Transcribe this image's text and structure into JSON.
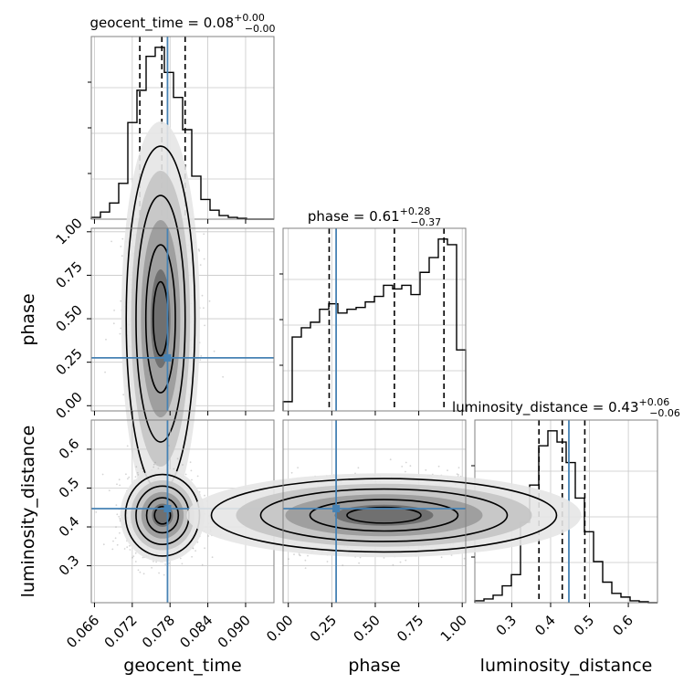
{
  "chart_data": {
    "type": "corner",
    "parameters": [
      {
        "name": "geocent_time",
        "xlabel": "geocent_time",
        "title": {
          "base": "geocent_time = 0.08",
          "plus": "+0.00",
          "minus": "−0.00"
        },
        "range": [
          0.0655,
          0.0945
        ],
        "ticks": [
          0.066,
          0.072,
          0.078,
          0.084,
          0.09
        ],
        "tick_labels": [
          "0.066",
          "0.072",
          "0.078",
          "0.084",
          "0.090"
        ],
        "quantiles": [
          0.0732,
          0.0767,
          0.0804
        ],
        "truth": 0.0776,
        "hist_edges": [
          0.0655,
          0.06695,
          0.0684,
          0.06985,
          0.0713,
          0.07275,
          0.0742,
          0.07565,
          0.0771,
          0.07855,
          0.08,
          0.08145,
          0.0829,
          0.08435,
          0.0858,
          0.08725,
          0.0887,
          0.09015,
          0.0916,
          0.09305,
          0.0945
        ],
        "hist_values": [
          0.01,
          0.04,
          0.09,
          0.2,
          0.54,
          0.72,
          0.91,
          0.96,
          0.82,
          0.68,
          0.5,
          0.24,
          0.11,
          0.05,
          0.02,
          0.01,
          0.005,
          0,
          0,
          0
        ]
      },
      {
        "name": "phase",
        "xlabel": "phase",
        "ylabel": "phase",
        "title": {
          "base": "phase = 0.61",
          "plus": "+0.28",
          "minus": "−0.37"
        },
        "range": [
          -0.03,
          1.02
        ],
        "ticks": [
          0.0,
          0.25,
          0.5,
          0.75,
          1.0
        ],
        "tick_labels": [
          "0.00",
          "0.25",
          "0.50",
          "0.75",
          "1.00"
        ],
        "quantiles": [
          0.235,
          0.61,
          0.895
        ],
        "truth": 0.275,
        "hist_edges": [
          -0.03,
          0.0225,
          0.075,
          0.1275,
          0.18,
          0.2325,
          0.285,
          0.3375,
          0.39,
          0.4425,
          0.495,
          0.5475,
          0.6,
          0.6525,
          0.705,
          0.7575,
          0.81,
          0.8625,
          0.915,
          0.9675,
          1.02
        ],
        "hist_values": [
          0.05,
          0.4,
          0.45,
          0.48,
          0.55,
          0.58,
          0.53,
          0.55,
          0.56,
          0.59,
          0.62,
          0.68,
          0.66,
          0.68,
          0.63,
          0.75,
          0.83,
          0.93,
          0.9,
          0.33
        ]
      },
      {
        "name": "luminosity_distance",
        "xlabel": "luminosity_distance",
        "ylabel": "luminosity_distance",
        "title": {
          "base": "luminosity_distance = 0.43",
          "plus": "+0.06",
          "minus": "−0.06"
        },
        "range": [
          0.205,
          0.675
        ],
        "ticks": [
          0.3,
          0.4,
          0.5,
          0.6
        ],
        "tick_labels": [
          "0.3",
          "0.4",
          "0.5",
          "0.6"
        ],
        "quantiles": [
          0.37,
          0.43,
          0.488
        ],
        "truth": 0.447,
        "hist_edges": [
          0.205,
          0.2285,
          0.252,
          0.2755,
          0.299,
          0.3225,
          0.346,
          0.3695,
          0.393,
          0.4165,
          0.44,
          0.4635,
          0.487,
          0.5105,
          0.534,
          0.5575,
          0.581,
          0.6045,
          0.628,
          0.6515,
          0.675
        ],
        "hist_values": [
          0.01,
          0.02,
          0.04,
          0.09,
          0.15,
          0.43,
          0.63,
          0.84,
          0.92,
          0.86,
          0.75,
          0.56,
          0.38,
          0.22,
          0.11,
          0.05,
          0.03,
          0.01,
          0.005,
          0
        ]
      }
    ],
    "pairs": [
      {
        "x": "geocent_time",
        "y": "phase",
        "center": [
          0.0765,
          0.5
        ],
        "x_sd": 0.0026,
        "y_spread": [
          0.02,
          1.0
        ]
      },
      {
        "x": "geocent_time",
        "y": "luminosity_distance",
        "center": [
          0.0768,
          0.43
        ],
        "x_sd": 0.0028,
        "y_sd": 0.05
      },
      {
        "x": "phase",
        "y": "luminosity_distance",
        "center": [
          0.55,
          0.43
        ],
        "x_spread": [
          0.0,
          1.02
        ],
        "y_sd": 0.045
      }
    ],
    "colors": {
      "truth": "#4682b4",
      "hist": "#000000",
      "grid": "#c8c8c8",
      "points": "#888888"
    }
  }
}
